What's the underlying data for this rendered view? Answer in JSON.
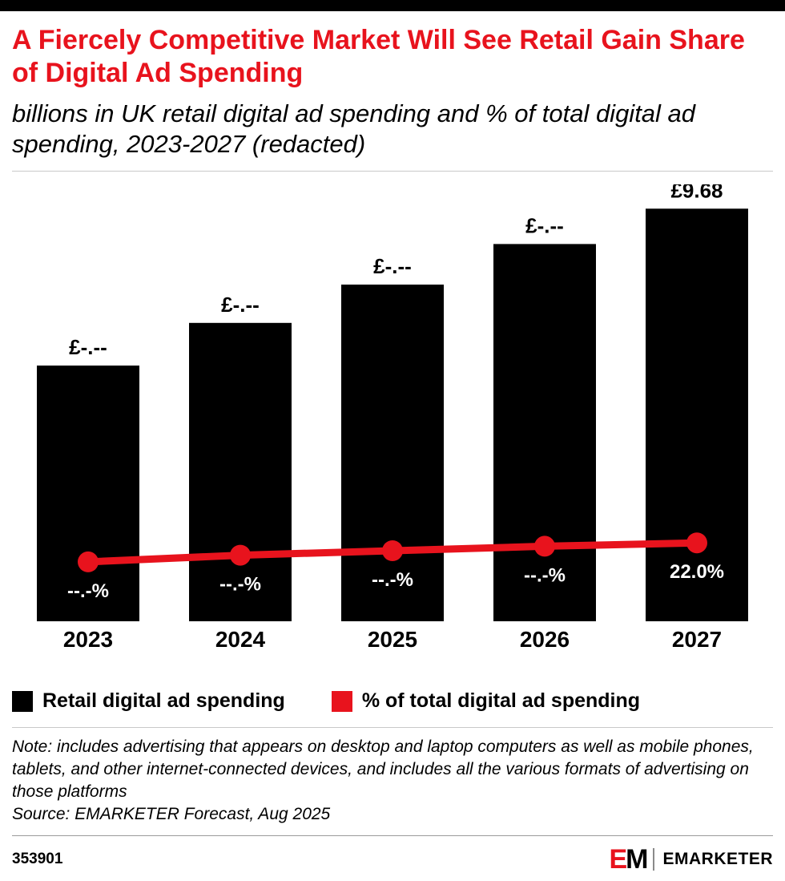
{
  "chart_data": {
    "type": "bar",
    "title": "A Fiercely Competitive Market Will See Retail Gain Share of Digital Ad Spending",
    "subtitle": "billions in UK retail digital ad spending and % of total digital ad spending, 2023-2027 (redacted)",
    "categories": [
      "2023",
      "2024",
      "2025",
      "2026",
      "2027"
    ],
    "series": [
      {
        "name": "Retail digital ad spending",
        "type": "bar",
        "color": "#000000",
        "values": [
          6.0,
          7.0,
          7.9,
          8.85,
          9.68
        ],
        "labels": [
          "£-.--",
          "£-.--",
          "£-.--",
          "£-.--",
          "£9.68"
        ]
      },
      {
        "name": "% of total digital ad spending",
        "type": "line",
        "color": "#e8131d",
        "values": [
          20.3,
          20.9,
          21.3,
          21.7,
          22.0
        ],
        "labels": [
          "--.-%",
          "--.-%",
          "--.-%",
          "--.-%",
          "22.0%"
        ]
      }
    ],
    "ylim": [
      0,
      10.25
    ],
    "y2lim": [
      15,
      54
    ],
    "grid": false,
    "legend_position": "bottom-left"
  },
  "footnote": {
    "note": "Note: includes advertising that appears on desktop and laptop computers as well as mobile phones, tablets, and other internet-connected devices, and includes all the various formats of advertising on those platforms",
    "source": "Source: EMARKETER Forecast, Aug 2025"
  },
  "footer": {
    "chart_id": "353901",
    "logo_e": "E",
    "logo_m": "M",
    "brand": "EMARKETER"
  }
}
